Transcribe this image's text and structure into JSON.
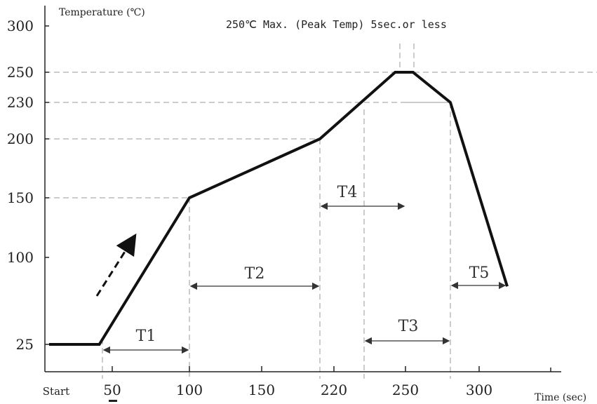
{
  "chart_data": {
    "type": "line",
    "title": "250℃ Max. (Peak Temp) 5sec.or less",
    "ylabel": "Temperature (℃)",
    "xlabel": "Time (sec)",
    "x_ticks": [
      "Start",
      "50",
      "100",
      "150",
      "220",
      "250",
      "300"
    ],
    "y_ticks": [
      "25",
      "100",
      "150",
      "200",
      "230",
      "250",
      "300"
    ],
    "series": [
      {
        "points": [
          {
            "x": "Start",
            "y": 25
          },
          {
            "x": 40,
            "y": 25
          },
          {
            "x": 100,
            "y": 150
          },
          {
            "x": 190,
            "y": 200
          },
          {
            "x": 245,
            "y": 250
          },
          {
            "x": 255,
            "y": 250
          },
          {
            "x": 280,
            "y": 230
          },
          {
            "x": 320,
            "y": 75
          }
        ]
      }
    ],
    "intervals": [
      {
        "label": "T1",
        "from": 40,
        "to": 100,
        "note": "ramp-up"
      },
      {
        "label": "T2",
        "from": 100,
        "to": 190
      },
      {
        "label": "T3",
        "from": 230,
        "to": 280
      },
      {
        "label": "T4",
        "from": 190,
        "to": 250
      },
      {
        "label": "T5",
        "from": 280,
        "to": 320
      }
    ],
    "grid": "dashed reference lines at 150, 200, 230, 250",
    "colors": {
      "line": "#111111",
      "grid": "#9a9a9a",
      "axis": "#222222"
    }
  }
}
